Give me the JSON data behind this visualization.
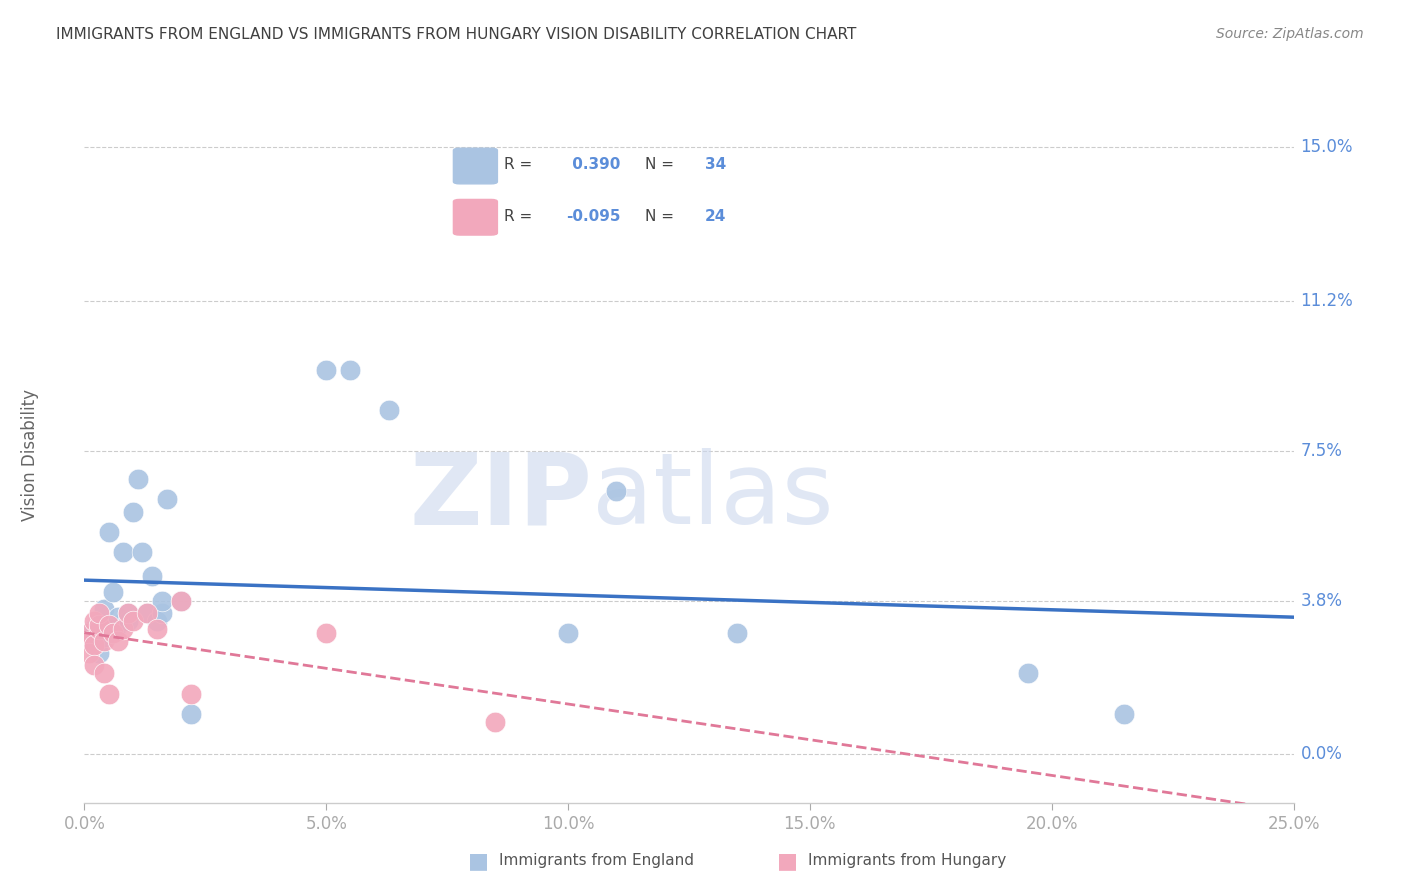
{
  "title": "IMMIGRANTS FROM ENGLAND VS IMMIGRANTS FROM HUNGARY VISION DISABILITY CORRELATION CHART",
  "source": "Source: ZipAtlas.com",
  "ylabel": "Vision Disability",
  "xlim": [
    0.0,
    0.25
  ],
  "ylim": [
    -0.012,
    0.16
  ],
  "england_x": [
    0.001,
    0.001,
    0.002,
    0.002,
    0.003,
    0.003,
    0.004,
    0.004,
    0.005,
    0.006,
    0.007,
    0.007,
    0.008,
    0.009,
    0.009,
    0.01,
    0.011,
    0.012,
    0.013,
    0.014,
    0.015,
    0.016,
    0.016,
    0.017,
    0.02,
    0.022,
    0.05,
    0.055,
    0.063,
    0.11,
    0.135,
    0.195,
    0.215,
    0.1
  ],
  "england_y": [
    0.03,
    0.028,
    0.031,
    0.027,
    0.032,
    0.025,
    0.029,
    0.036,
    0.055,
    0.04,
    0.032,
    0.034,
    0.05,
    0.033,
    0.035,
    0.06,
    0.068,
    0.05,
    0.035,
    0.044,
    0.033,
    0.035,
    0.038,
    0.063,
    0.038,
    0.01,
    0.095,
    0.095,
    0.085,
    0.065,
    0.03,
    0.02,
    0.01,
    0.03
  ],
  "hungary_x": [
    0.001,
    0.001,
    0.001,
    0.002,
    0.002,
    0.002,
    0.003,
    0.003,
    0.003,
    0.004,
    0.004,
    0.005,
    0.005,
    0.006,
    0.007,
    0.008,
    0.009,
    0.01,
    0.013,
    0.015,
    0.02,
    0.022,
    0.05,
    0.085
  ],
  "hungary_y": [
    0.03,
    0.028,
    0.025,
    0.033,
    0.027,
    0.022,
    0.031,
    0.032,
    0.035,
    0.028,
    0.02,
    0.032,
    0.015,
    0.03,
    0.028,
    0.031,
    0.035,
    0.033,
    0.035,
    0.031,
    0.038,
    0.015,
    0.03,
    0.008
  ],
  "england_color": "#aac4e2",
  "hungary_color": "#f2a8bc",
  "england_line_color": "#3a72c4",
  "hungary_line_color": "#e07898",
  "england_R": 0.39,
  "england_N": 34,
  "hungary_R": -0.095,
  "hungary_N": 24,
  "watermark_zip": "ZIP",
  "watermark_atlas": "atlas",
  "background_color": "#ffffff",
  "grid_color": "#cccccc",
  "tick_label_color": "#5b8dd9",
  "title_color": "#404040",
  "source_color": "#888888",
  "ytick_vals": [
    0.0,
    0.038,
    0.075,
    0.112,
    0.15
  ],
  "ytick_labels": [
    "0.0%",
    "3.8%",
    "7.5%",
    "11.2%",
    "15.0%"
  ],
  "xtick_vals": [
    0.0,
    0.05,
    0.1,
    0.15,
    0.2,
    0.25
  ],
  "xtick_labels": [
    "0.0%",
    "5.0%",
    "10.0%",
    "15.0%",
    "20.0%",
    "25.0%"
  ]
}
